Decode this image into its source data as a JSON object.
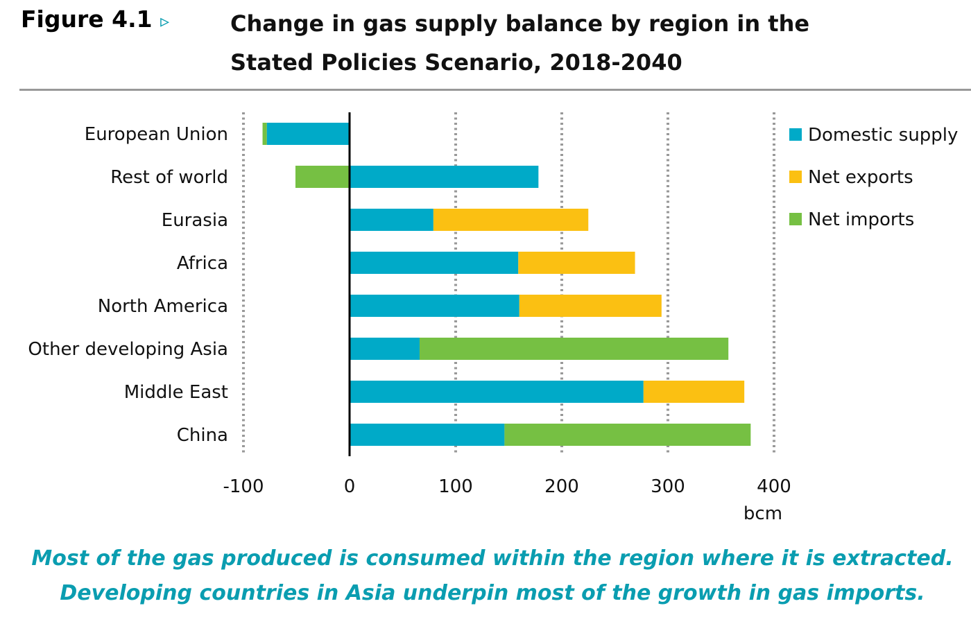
{
  "figure_label": "Figure 4.1",
  "figure_marker": "▹",
  "chart_data": {
    "type": "bar",
    "orientation": "horizontal",
    "stacked": true,
    "title": "Change in gas supply balance by region in the Stated Policies Scenario, 2018-2040",
    "title_lines": [
      "Change in gas supply balance by region in the",
      "Stated Policies Scenario, 2018-2040"
    ],
    "categories": [
      "European Union",
      "Rest of world",
      "Eurasia",
      "Africa",
      "North America",
      "Other developing Asia",
      "Middle East",
      "China"
    ],
    "series": [
      {
        "name": "Domestic supply",
        "color": "#00aac8",
        "values": [
          -78,
          178,
          79,
          159,
          160,
          66,
          277,
          146
        ]
      },
      {
        "name": "Net exports",
        "color": "#fbc012",
        "values": [
          0,
          0,
          146,
          110,
          134,
          0,
          95,
          0
        ]
      },
      {
        "name": "Net imports",
        "color": "#76c043",
        "values": [
          -4,
          -51,
          0,
          0,
          0,
          291,
          0,
          232
        ]
      }
    ],
    "xlim": [
      -100,
      400
    ],
    "xticks": [
      -100,
      0,
      100,
      200,
      300,
      400
    ],
    "xtick_labels": [
      "-100",
      "0",
      "100",
      "200",
      "300",
      "400"
    ],
    "xlabel": "bcm",
    "grid": "vertical dotted",
    "legend_placement": "right"
  },
  "caption": [
    "Most of the gas produced is consumed within the region where it is extracted.",
    "Developing countries in Asia underpin most of the growth in gas imports."
  ]
}
